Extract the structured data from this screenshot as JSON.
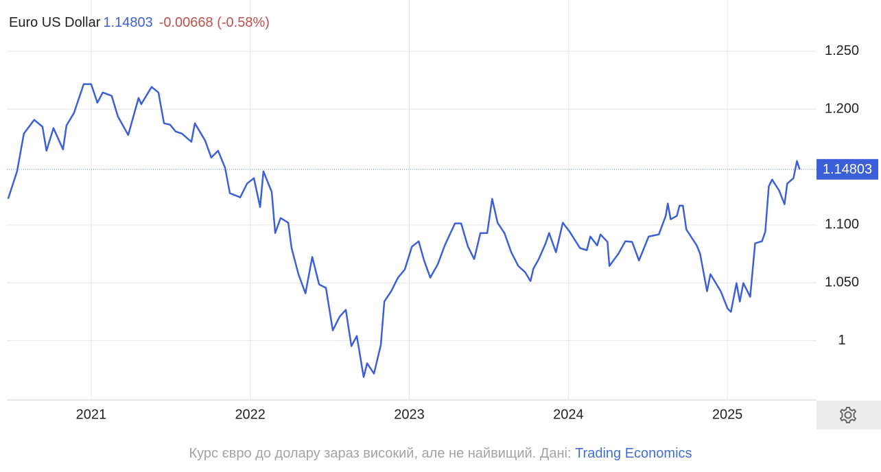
{
  "chart_data": {
    "type": "line",
    "title": "Euro US Dollar",
    "last_value": 1.14803,
    "change": "-0.00668 (-0.58%)",
    "color": "#3a5fd9",
    "x": [
      2020.478,
      2020.534,
      2020.577,
      2020.642,
      2020.694,
      2020.719,
      2020.763,
      2020.823,
      2020.845,
      2020.892,
      2020.953,
      2021.0,
      2021.039,
      2021.073,
      2021.129,
      2021.168,
      2021.233,
      2021.298,
      2021.315,
      2021.38,
      2021.423,
      2021.458,
      2021.496,
      2021.531,
      2021.57,
      2021.63,
      2021.652,
      2021.716,
      2021.755,
      2021.798,
      2021.842,
      2021.872,
      2021.937,
      2021.98,
      2022.023,
      2022.062,
      2022.083,
      2022.135,
      2022.157,
      2022.191,
      2022.239,
      2022.26,
      2022.303,
      2022.347,
      2022.39,
      2022.433,
      2022.476,
      2022.519,
      2022.562,
      2022.601,
      2022.636,
      2022.67,
      2022.713,
      2022.735,
      2022.778,
      2022.821,
      2022.843,
      2022.886,
      2022.929,
      2022.972,
      2023.016,
      2023.059,
      2023.093,
      2023.132,
      2023.18,
      2023.223,
      2023.287,
      2023.326,
      2023.369,
      2023.408,
      2023.447,
      2023.49,
      2023.521,
      2023.555,
      2023.598,
      2023.641,
      2023.685,
      2023.728,
      2023.762,
      2023.78,
      2023.814,
      2023.857,
      2023.879,
      2023.922,
      2023.965,
      2024.008,
      2024.073,
      2024.116,
      2024.138,
      2024.181,
      2024.202,
      2024.246,
      2024.258,
      2024.315,
      2024.358,
      2024.401,
      2024.444,
      2024.505,
      2024.569,
      2024.612,
      2024.625,
      2024.643,
      2024.682,
      2024.699,
      2024.72,
      2024.742,
      2024.807,
      2024.828,
      2024.872,
      2024.893,
      2024.958,
      2025.001,
      2025.022,
      2025.057,
      2025.078,
      2025.1,
      2025.143,
      2025.174,
      2025.217,
      2025.238,
      2025.26,
      2025.281,
      2025.325,
      2025.359,
      2025.376,
      2025.415,
      2025.437,
      2025.454
    ],
    "values": [
      1.1226,
      1.1463,
      1.1789,
      1.1908,
      1.1848,
      1.1641,
      1.1836,
      1.1653,
      1.186,
      1.1967,
      1.2216,
      1.2216,
      1.2056,
      1.2144,
      1.2115,
      1.1937,
      1.1777,
      1.2097,
      1.2044,
      1.2192,
      1.2144,
      1.1878,
      1.1866,
      1.1807,
      1.1789,
      1.1718,
      1.1878,
      1.173,
      1.1582,
      1.1641,
      1.1493,
      1.1274,
      1.1238,
      1.1357,
      1.1404,
      1.1155,
      1.1463,
      1.1286,
      1.093,
      1.106,
      1.1019,
      1.08,
      1.0575,
      1.0409,
      1.0723,
      1.0486,
      1.0456,
      1.0089,
      1.0207,
      1.0267,
      0.9953,
      1.0041,
      0.9686,
      0.9805,
      0.9716,
      0.9964,
      1.0338,
      1.0427,
      1.0545,
      1.0616,
      1.0812,
      1.0859,
      1.0693,
      1.0545,
      1.0663,
      1.0823,
      1.1013,
      1.1013,
      1.0812,
      1.0705,
      1.093,
      1.093,
      1.1226,
      1.1019,
      1.093,
      1.0764,
      1.0646,
      1.0592,
      1.0515,
      1.0622,
      1.0705,
      1.0841,
      1.093,
      1.0764,
      1.1019,
      1.0942,
      1.08,
      1.0782,
      1.09,
      1.0823,
      1.0918,
      1.0853,
      1.0646,
      1.0752,
      1.0859,
      1.0853,
      1.0693,
      1.09,
      1.0918,
      1.1078,
      1.1185,
      1.1049,
      1.1078,
      1.1167,
      1.1167,
      1.096,
      1.0823,
      1.0752,
      1.0427,
      1.0575,
      1.0427,
      1.0278,
      1.0249,
      1.0498,
      1.0338,
      1.0498,
      1.0379,
      1.0841,
      1.0859,
      1.0942,
      1.1333,
      1.1392,
      1.1297,
      1.1179,
      1.1357,
      1.1404,
      1.1552,
      1.14803
    ],
    "xlim": [
      2020.47,
      2025.56
    ],
    "xticks": [
      2021,
      2022,
      2023,
      2024,
      2025
    ],
    "ylim": [
      0.95,
      1.27
    ],
    "yticks": [
      {
        "value": 1.25,
        "label": "1.250"
      },
      {
        "value": 1.2,
        "label": "1.200"
      },
      {
        "value": 1.1,
        "label": "1.100"
      },
      {
        "value": 1.05,
        "label": "1.050"
      },
      1
    ],
    "grid": true
  },
  "caption": {
    "text": "Курс євро до долару зараз високий, але не найвищий. Дані: ",
    "source": "Trading Economics"
  }
}
